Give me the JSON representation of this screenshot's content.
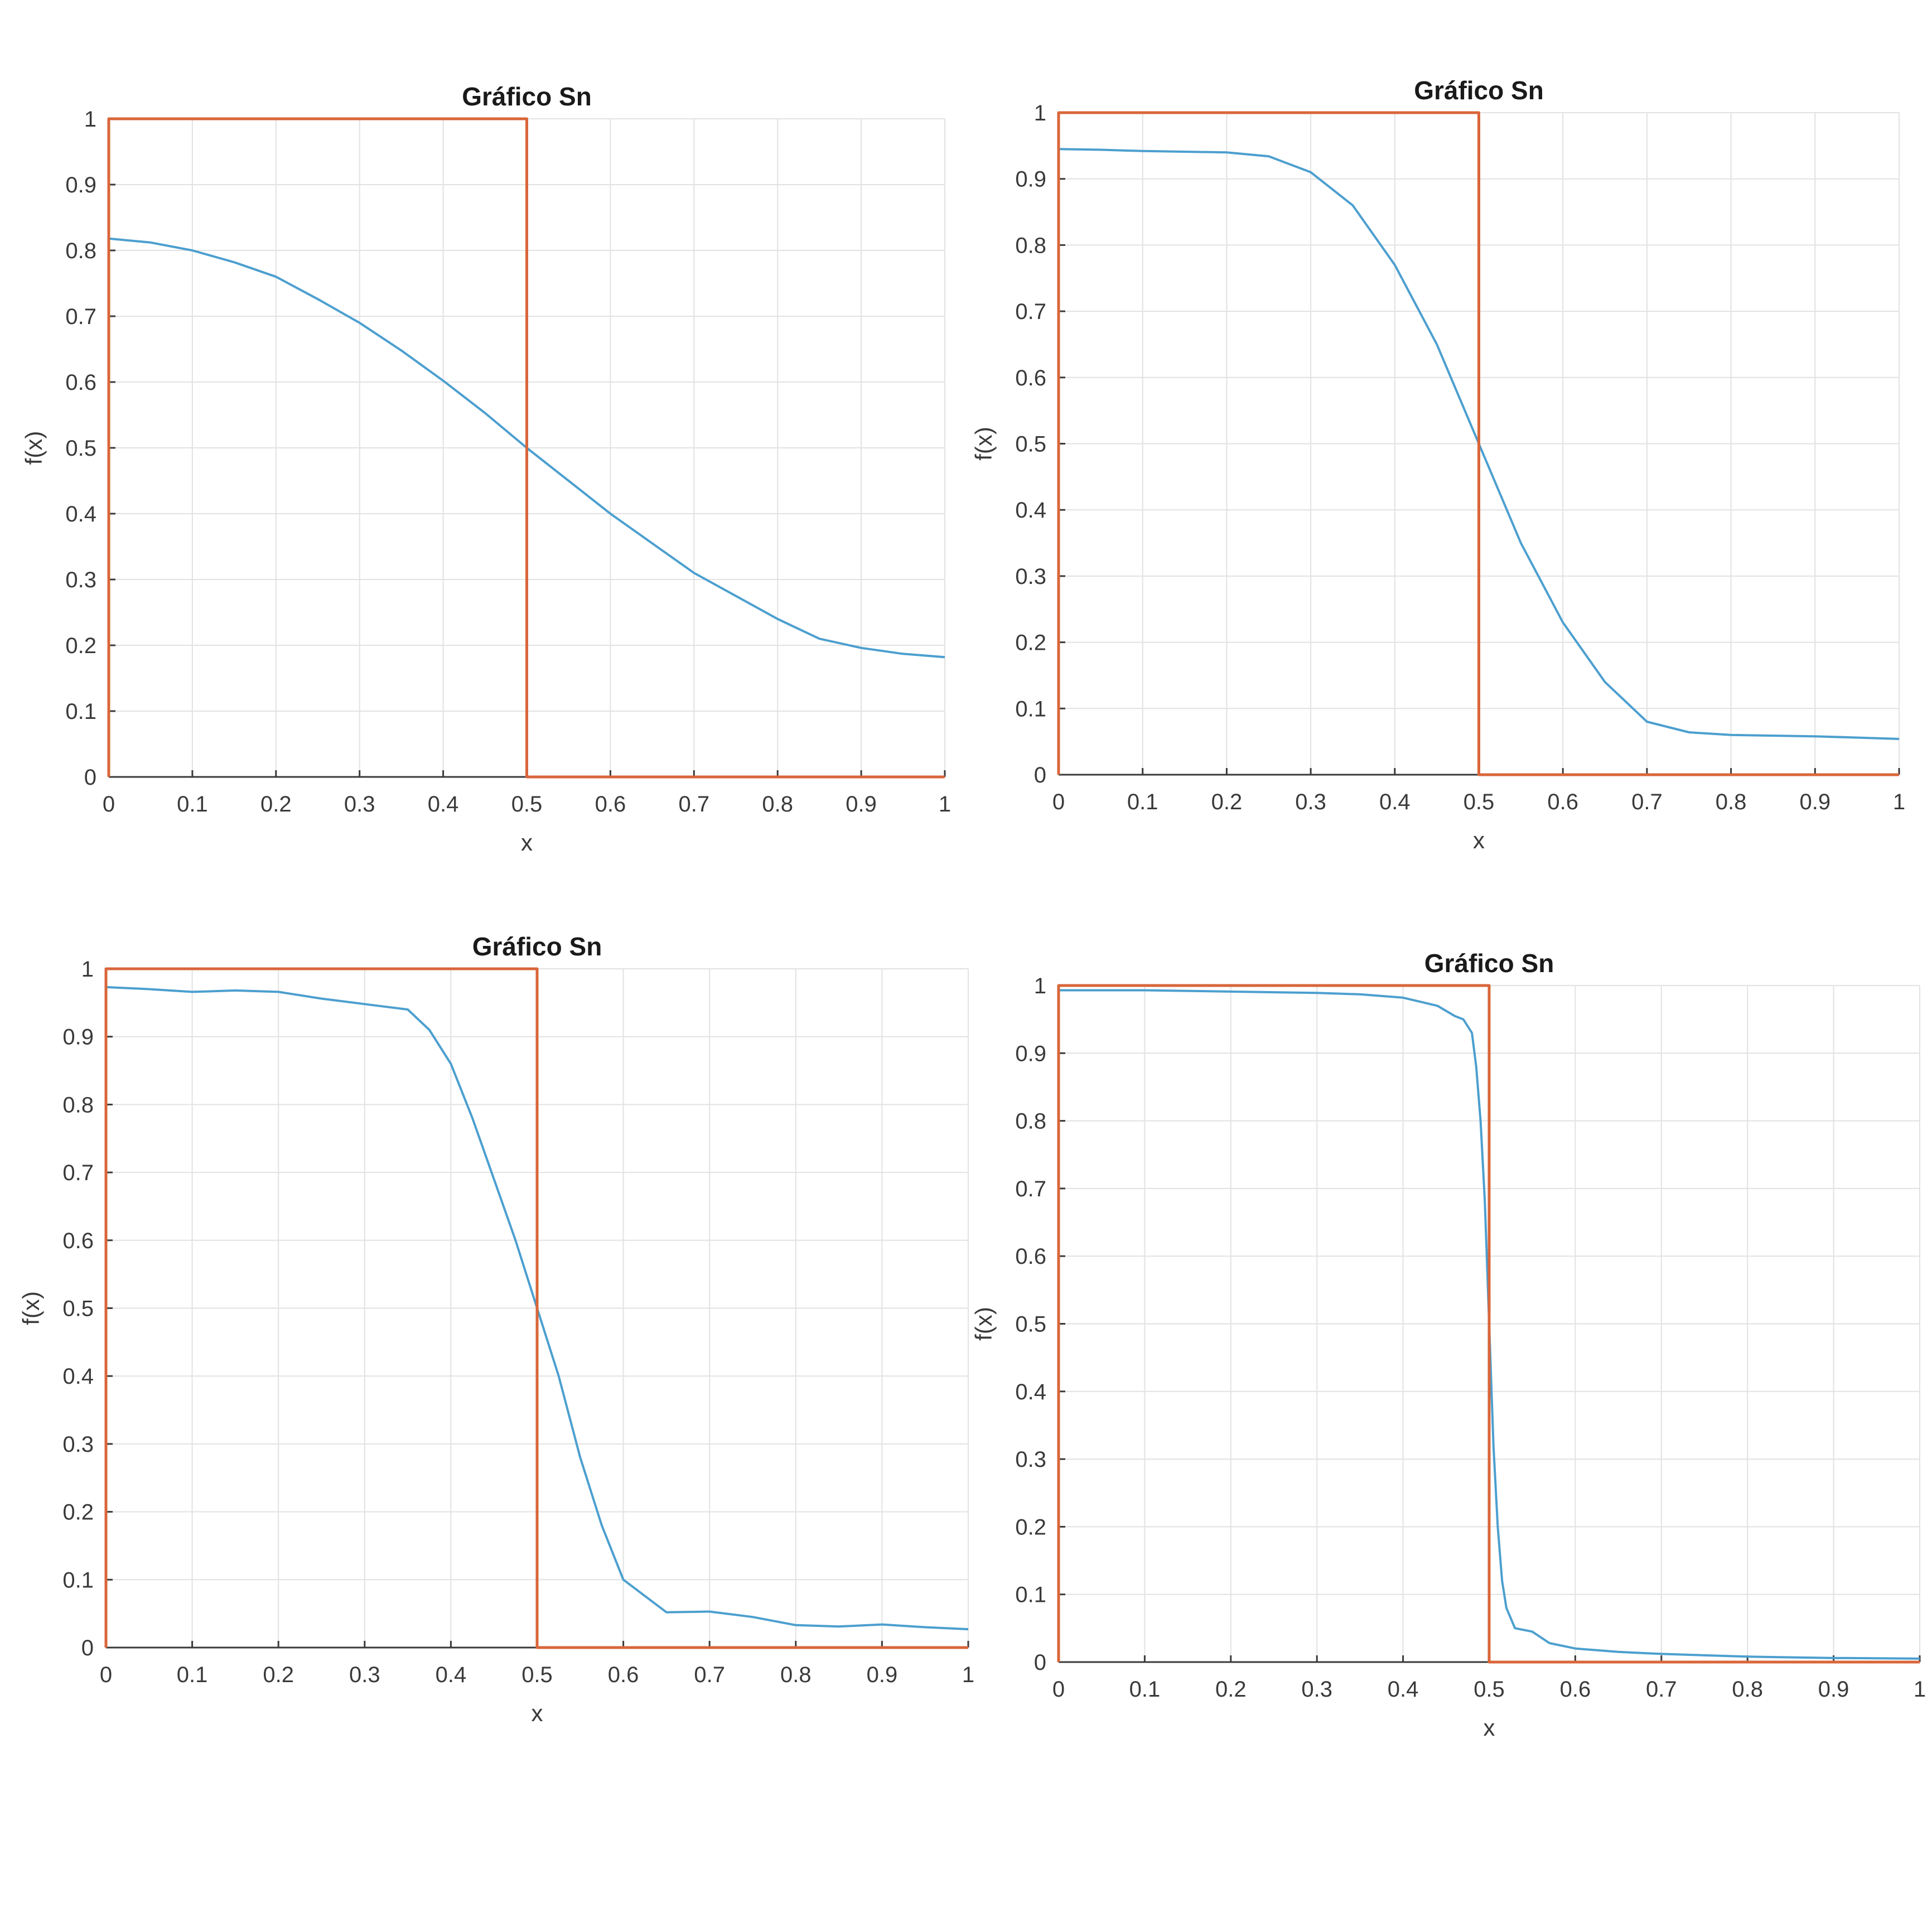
{
  "colors": {
    "approximation": "#4c9fcf",
    "step": "#d9663a",
    "grid": "#e2e2e2",
    "axis": "#3a3a3a"
  },
  "chart_data": [
    {
      "type": "line",
      "title": "Gráfico Sn",
      "xlabel": "x",
      "ylabel": "f(x)",
      "xlim": [
        0,
        1
      ],
      "ylim": [
        0,
        1
      ],
      "xticks": [
        "0",
        "0.1",
        "0.2",
        "0.3",
        "0.4",
        "0.5",
        "0.6",
        "0.7",
        "0.8",
        "0.9",
        "1"
      ],
      "yticks": [
        "0",
        "0.1",
        "0.2",
        "0.3",
        "0.4",
        "0.5",
        "0.6",
        "0.7",
        "0.8",
        "0.9",
        "1"
      ],
      "grid": true,
      "series": [
        {
          "color": "#4c9fcf",
          "x": [
            0,
            0.05,
            0.1,
            0.15,
            0.2,
            0.25,
            0.3,
            0.35,
            0.4,
            0.45,
            0.5,
            0.55,
            0.6,
            0.65,
            0.7,
            0.75,
            0.8,
            0.85,
            0.9,
            0.95,
            1.0
          ],
          "y": [
            0.818,
            0.812,
            0.8,
            0.782,
            0.76,
            0.726,
            0.69,
            0.648,
            0.602,
            0.553,
            0.5,
            0.45,
            0.4,
            0.355,
            0.31,
            0.275,
            0.24,
            0.21,
            0.196,
            0.187,
            0.182
          ]
        },
        {
          "color": "#d9663a",
          "x": [
            0,
            0,
            0.5,
            0.5,
            1
          ],
          "y": [
            0,
            1,
            1,
            0,
            0
          ]
        }
      ]
    },
    {
      "type": "line",
      "title": "Gráfico Sn",
      "xlabel": "x",
      "ylabel": "f(x)",
      "xlim": [
        0,
        1
      ],
      "ylim": [
        0,
        1
      ],
      "xticks": [
        "0",
        "0.1",
        "0.2",
        "0.3",
        "0.4",
        "0.5",
        "0.6",
        "0.7",
        "0.8",
        "0.9",
        "1"
      ],
      "yticks": [
        "0",
        "0.1",
        "0.2",
        "0.3",
        "0.4",
        "0.5",
        "0.6",
        "0.7",
        "0.8",
        "0.9",
        "1"
      ],
      "grid": true,
      "series": [
        {
          "color": "#4c9fcf",
          "x": [
            0,
            0.05,
            0.1,
            0.15,
            0.2,
            0.25,
            0.3,
            0.35,
            0.4,
            0.45,
            0.5,
            0.55,
            0.6,
            0.65,
            0.7,
            0.75,
            0.8,
            0.85,
            0.9,
            0.95,
            1.0
          ],
          "y": [
            0.945,
            0.944,
            0.942,
            0.941,
            0.94,
            0.934,
            0.91,
            0.86,
            0.77,
            0.65,
            0.5,
            0.35,
            0.23,
            0.14,
            0.08,
            0.064,
            0.06,
            0.059,
            0.058,
            0.056,
            0.054
          ]
        },
        {
          "color": "#d9663a",
          "x": [
            0,
            0,
            0.5,
            0.5,
            1
          ],
          "y": [
            0,
            1,
            1,
            0,
            0
          ]
        }
      ]
    },
    {
      "type": "line",
      "title": "Gráfico Sn",
      "xlabel": "x",
      "ylabel": "f(x)",
      "xlim": [
        0,
        1
      ],
      "ylim": [
        0,
        1
      ],
      "xticks": [
        "0",
        "0.1",
        "0.2",
        "0.3",
        "0.4",
        "0.5",
        "0.6",
        "0.7",
        "0.8",
        "0.9",
        "1"
      ],
      "yticks": [
        "0",
        "0.1",
        "0.2",
        "0.3",
        "0.4",
        "0.5",
        "0.6",
        "0.7",
        "0.8",
        "0.9",
        "1"
      ],
      "grid": true,
      "series": [
        {
          "color": "#4c9fcf",
          "x": [
            0,
            0.05,
            0.1,
            0.15,
            0.2,
            0.25,
            0.3,
            0.35,
            0.375,
            0.4,
            0.425,
            0.45,
            0.475,
            0.5,
            0.525,
            0.55,
            0.575,
            0.6,
            0.65,
            0.7,
            0.75,
            0.8,
            0.85,
            0.9,
            0.95,
            1.0
          ],
          "y": [
            0.973,
            0.97,
            0.966,
            0.968,
            0.966,
            0.956,
            0.948,
            0.94,
            0.91,
            0.86,
            0.78,
            0.69,
            0.6,
            0.5,
            0.4,
            0.28,
            0.18,
            0.1,
            0.052,
            0.053,
            0.045,
            0.033,
            0.031,
            0.034,
            0.03,
            0.027
          ]
        },
        {
          "color": "#d9663a",
          "x": [
            0,
            0,
            0.5,
            0.5,
            1
          ],
          "y": [
            0,
            1,
            1,
            0,
            0
          ]
        }
      ]
    },
    {
      "type": "line",
      "title": "Gráfico Sn",
      "xlabel": "x",
      "ylabel": "f(x)",
      "xlim": [
        0,
        1
      ],
      "ylim": [
        0,
        1
      ],
      "xticks": [
        "0",
        "0.1",
        "0.2",
        "0.3",
        "0.4",
        "0.5",
        "0.6",
        "0.7",
        "0.8",
        "0.9",
        "1"
      ],
      "yticks": [
        "0",
        "0.1",
        "0.2",
        "0.3",
        "0.4",
        "0.5",
        "0.6",
        "0.7",
        "0.8",
        "0.9",
        "1"
      ],
      "grid": true,
      "series": [
        {
          "color": "#4c9fcf",
          "x": [
            0,
            0.1,
            0.2,
            0.3,
            0.35,
            0.4,
            0.42,
            0.44,
            0.46,
            0.47,
            0.48,
            0.485,
            0.49,
            0.495,
            0.5,
            0.505,
            0.51,
            0.515,
            0.52,
            0.53,
            0.55,
            0.57,
            0.6,
            0.65,
            0.7,
            0.8,
            0.9,
            1.0
          ],
          "y": [
            0.993,
            0.993,
            0.991,
            0.989,
            0.987,
            0.982,
            0.976,
            0.97,
            0.955,
            0.95,
            0.93,
            0.88,
            0.8,
            0.68,
            0.5,
            0.32,
            0.2,
            0.12,
            0.08,
            0.05,
            0.045,
            0.028,
            0.02,
            0.015,
            0.012,
            0.008,
            0.006,
            0.005
          ]
        },
        {
          "color": "#d9663a",
          "x": [
            0,
            0,
            0.5,
            0.5,
            1
          ],
          "y": [
            0,
            1,
            1,
            0,
            0
          ]
        }
      ]
    }
  ]
}
